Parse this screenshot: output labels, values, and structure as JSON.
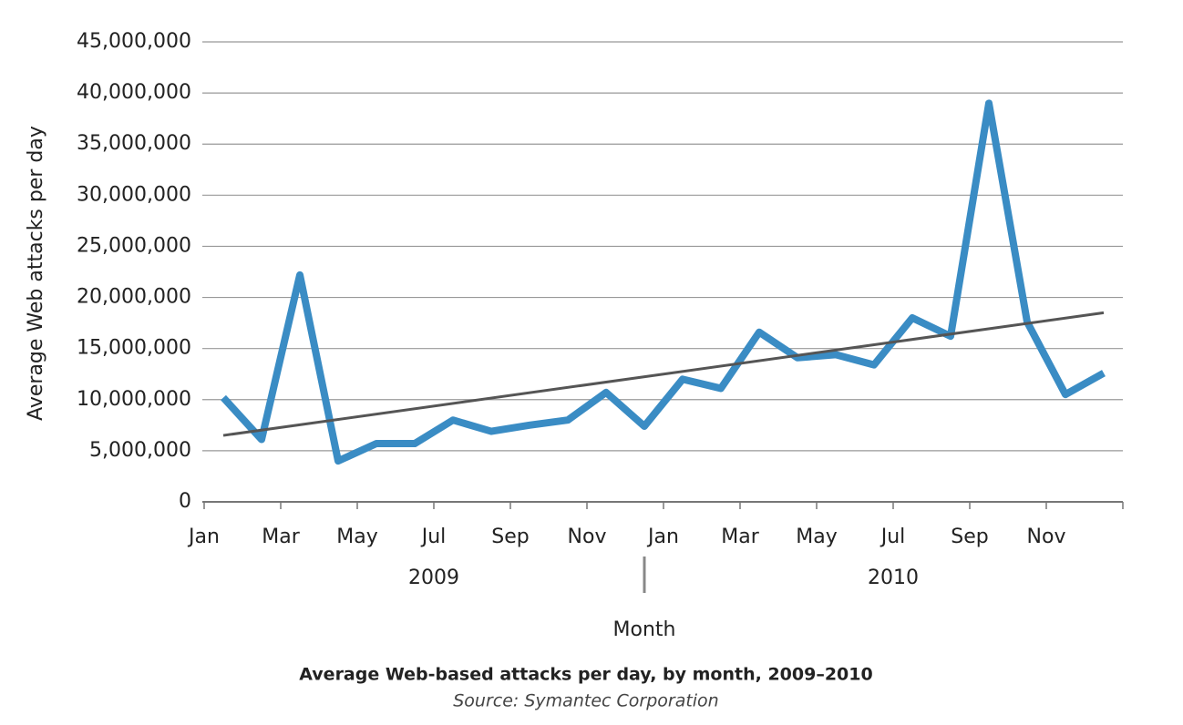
{
  "chart_data": {
    "type": "line",
    "title": "Average Web-based attacks per day, by month, 2009–2010",
    "subtitle": "Source: Symantec Corporation",
    "xlabel": "Month",
    "ylabel": "Average Web attacks per day",
    "categories": [
      "Jan",
      null,
      "Mar",
      null,
      "May",
      null,
      "Jul",
      null,
      "Sep",
      null,
      "Nov",
      null,
      "Jan",
      null,
      "Mar",
      null,
      "May",
      null,
      "Jul",
      null,
      "Sep",
      null,
      "Nov",
      null
    ],
    "year_labels": [
      "2009",
      "2010"
    ],
    "series": [
      {
        "color": "#3a8cc4",
        "values": [
          10200000,
          6100000,
          22200000,
          4000000,
          5700000,
          5700000,
          8000000,
          6900000,
          7500000,
          8000000,
          10700000,
          7400000,
          12000000,
          11100000,
          16600000,
          14100000,
          14400000,
          13400000,
          18000000,
          16200000,
          39000000,
          17600000,
          10500000,
          12600000
        ]
      }
    ],
    "trend": {
      "color": "#555555",
      "values": [
        6500000,
        18500000
      ]
    },
    "ylim": [
      0,
      45000000
    ],
    "yticks": [
      0,
      {
        "value": 5000000,
        "label": "5,000,000"
      },
      {
        "value": 10000000,
        "label": "10,000,000"
      },
      {
        "value": 15000000,
        "label": "15,000,000"
      },
      {
        "value": 20000000,
        "label": "20,000,000"
      },
      {
        "value": 25000000,
        "label": "25,000,000"
      },
      {
        "value": 30000000,
        "label": "30,000,000"
      },
      {
        "value": 35000000,
        "label": "35,000,000"
      },
      {
        "value": 40000000,
        "label": "40,000,000"
      },
      {
        "value": 45000000,
        "label": "45,000,000"
      }
    ],
    "grid": true
  }
}
